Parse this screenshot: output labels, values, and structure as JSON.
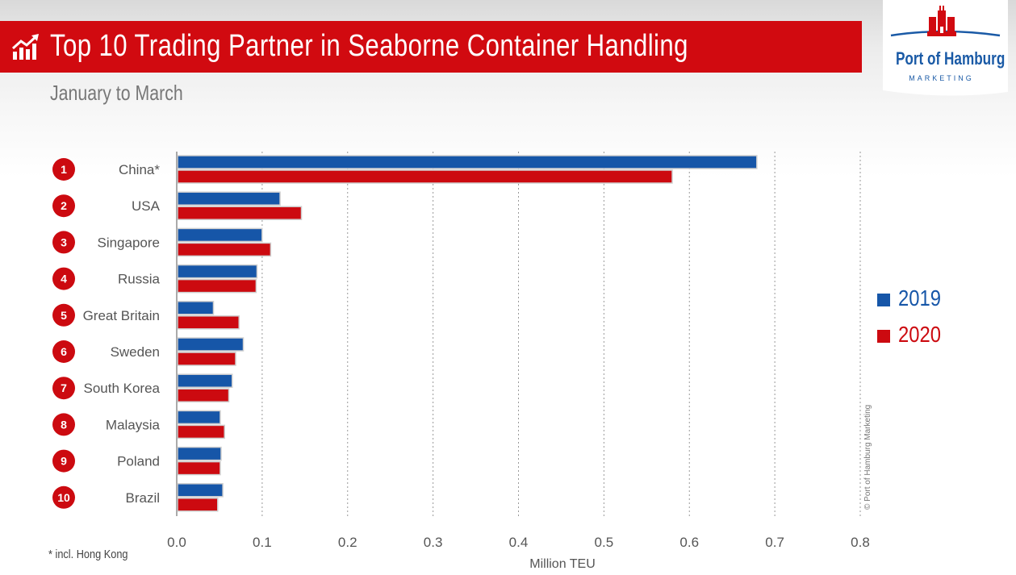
{
  "header": {
    "title": "Top 10 Trading Partner in Seaborne Container Handling",
    "subtitle": "January to March",
    "icon": "chart-growth-icon"
  },
  "logo": {
    "name": "Port of Hamburg",
    "tagline": "MARKETING",
    "icon": "hamburg-castle-icon"
  },
  "colors": {
    "series_2019": "#1656a8",
    "series_2020": "#cc0a10",
    "title_bg": "#d10a10",
    "rank_badge": "#cc0a10"
  },
  "footnote": "*  incl. Hong Kong",
  "copyright": "© Port of Hamburg Marketing",
  "chart_data": {
    "type": "bar",
    "orientation": "horizontal",
    "ranks": [
      "1",
      "2",
      "3",
      "4",
      "5",
      "6",
      "7",
      "8",
      "9",
      "10"
    ],
    "categories": [
      "China*",
      "USA",
      "Singapore",
      "Russia",
      "Great Britain",
      "Sweden",
      "South Korea",
      "Malaysia",
      "Poland",
      "Brazil"
    ],
    "series": [
      {
        "name": "2019",
        "color": "#1656a8",
        "values": [
          0.678,
          0.12,
          0.099,
          0.093,
          0.042,
          0.077,
          0.064,
          0.05,
          0.051,
          0.053
        ]
      },
      {
        "name": "2020",
        "color": "#cc0a10",
        "values": [
          0.579,
          0.145,
          0.109,
          0.092,
          0.072,
          0.068,
          0.06,
          0.055,
          0.05,
          0.047
        ]
      }
    ],
    "xlabel": "Million TEU",
    "xlim": [
      0,
      0.8
    ],
    "xticks": [
      "0.0",
      "0.1",
      "0.2",
      "0.3",
      "0.4",
      "0.5",
      "0.6",
      "0.7",
      "0.8"
    ],
    "grid": "vertical dotted",
    "legend_position": "right"
  }
}
